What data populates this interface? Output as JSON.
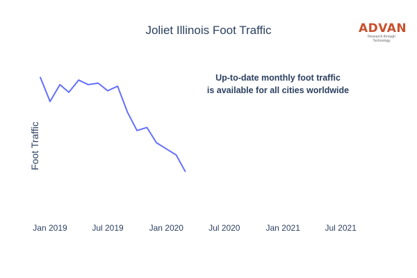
{
  "chart_data": {
    "type": "line",
    "title": "Joliet Illinois Foot Traffic",
    "xlabel": "",
    "ylabel": "Foot Traffic",
    "annotation": [
      "Up-to-date monthly foot traffic",
      "is available for all cities worldwide"
    ],
    "x_tick_labels": [
      "Jan 2019",
      "Jul 2019",
      "Jan 2020",
      "Jul 2020",
      "Jan 2021",
      "Jul 2021"
    ],
    "x_tick_dates": [
      "2019-01-01",
      "2019-07-01",
      "2020-01-01",
      "2020-07-01",
      "2021-01-01",
      "2021-07-01"
    ],
    "xlim": [
      "2018-11-25",
      "2021-09-15"
    ],
    "ylim": [
      0,
      100
    ],
    "grid": false,
    "line_color": "#636efa",
    "series": [
      {
        "x": [
          "2018-12-01",
          "2019-01-01",
          "2019-02-01",
          "2019-03-01",
          "2019-04-01",
          "2019-05-01",
          "2019-06-01",
          "2019-07-01",
          "2019-08-01",
          "2019-09-01",
          "2019-10-01",
          "2019-11-01",
          "2019-12-01",
          "2020-01-01",
          "2020-02-01",
          "2020-03-01"
        ],
        "y": [
          86,
          70,
          81,
          76,
          84,
          81,
          82,
          77,
          80,
          63,
          51,
          53,
          43,
          39,
          35,
          24
        ]
      }
    ]
  },
  "logo": {
    "word": "ADVAN",
    "tagline": "Research through Technology",
    "color": "#c8502d"
  }
}
